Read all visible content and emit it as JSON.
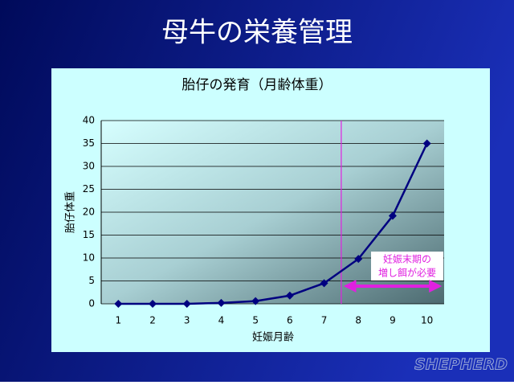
{
  "slide_title": "母牛の栄養管理",
  "chart_data": {
    "type": "line",
    "title": "胎仔の発育（月齢体重）",
    "x_label": "妊娠月齢",
    "y_label": "胎仔体重",
    "categories": [
      "1",
      "2",
      "3",
      "4",
      "5",
      "6",
      "7",
      "8",
      "9",
      "10"
    ],
    "series": [
      {
        "color": "#000080",
        "values": [
          0,
          0,
          0,
          0.2,
          0.6,
          1.8,
          4.5,
          9.8,
          19.2,
          35
        ]
      }
    ],
    "ylim": [
      0,
      40
    ],
    "yticks": [
      0,
      5,
      10,
      15,
      20,
      25,
      30,
      35,
      40
    ],
    "grid": true,
    "annotation": [
      "妊娠末期の",
      "増し餌が必要"
    ]
  },
  "logo": "SHEPHERD"
}
